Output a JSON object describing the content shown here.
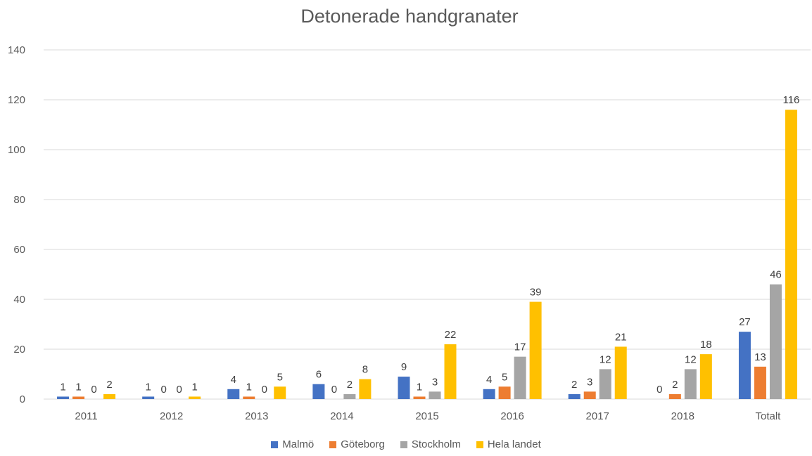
{
  "chart_data": {
    "type": "bar",
    "title": "Detonerade handgranater",
    "xlabel": "",
    "ylabel": "",
    "ylim": [
      0,
      140
    ],
    "yticks": [
      0,
      20,
      40,
      60,
      80,
      100,
      120,
      140
    ],
    "grid": true,
    "legend_position": "bottom",
    "categories": [
      "2011",
      "2012",
      "2013",
      "2014",
      "2015",
      "2016",
      "2017",
      "2018",
      "Totalt"
    ],
    "series": [
      {
        "name": "Malmö",
        "color": "#4472C4",
        "values": [
          1,
          1,
          4,
          6,
          9,
          4,
          2,
          0,
          27
        ]
      },
      {
        "name": "Göteborg",
        "color": "#ED7D31",
        "values": [
          1,
          0,
          1,
          0,
          1,
          5,
          3,
          2,
          13
        ]
      },
      {
        "name": "Stockholm",
        "color": "#A5A5A5",
        "values": [
          0,
          0,
          0,
          2,
          3,
          17,
          12,
          12,
          46
        ]
      },
      {
        "name": "Hela landet",
        "color": "#FFC000",
        "values": [
          2,
          1,
          5,
          8,
          22,
          39,
          21,
          18,
          116
        ]
      }
    ]
  }
}
